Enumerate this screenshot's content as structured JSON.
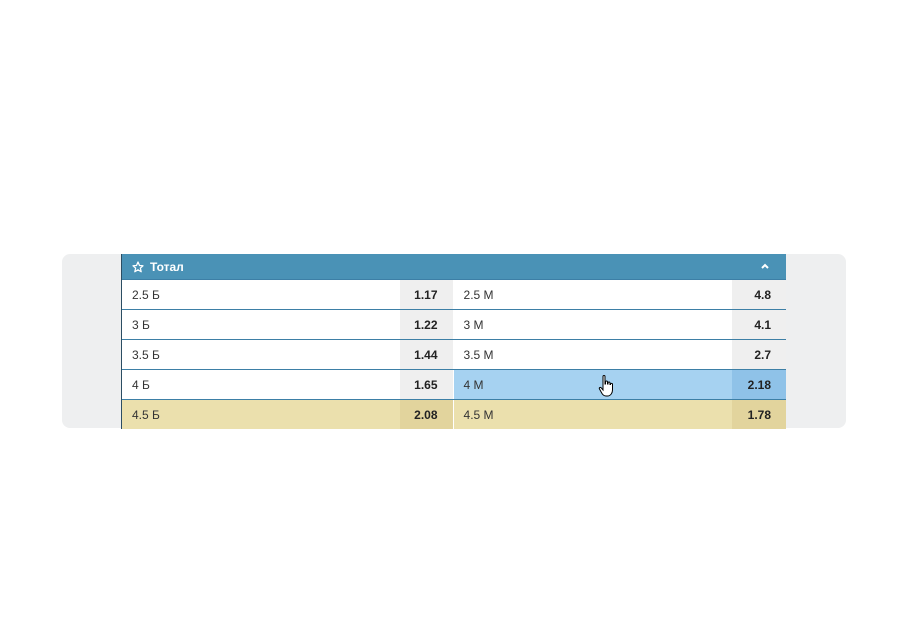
{
  "header": {
    "title": "Тотал"
  },
  "rows": [
    [
      "2.5 Б",
      1.17,
      "2.5 М",
      4.8
    ],
    [
      "3 Б",
      1.22,
      "3 М",
      4.1
    ],
    [
      "3.5 Б",
      1.44,
      "3.5 М",
      2.7
    ],
    [
      "4 Б",
      1.65,
      "4 М",
      2.18
    ],
    [
      "4.5 Б",
      2.08,
      "4.5 М",
      1.78
    ]
  ]
}
